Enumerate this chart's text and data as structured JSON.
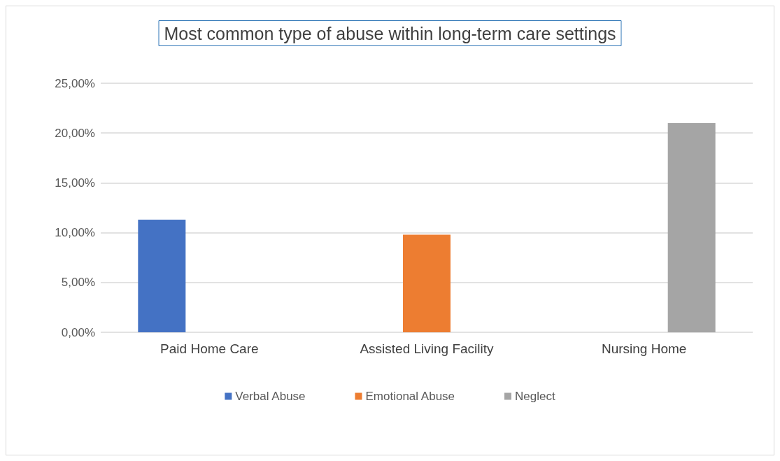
{
  "chart_data": {
    "type": "bar",
    "title": "Most common type of abuse within long-term care settings",
    "categories": [
      "Paid Home Care",
      "Assisted Living Facility",
      "Nursing Home"
    ],
    "series": [
      {
        "name": "Verbal Abuse",
        "color": "#4472c4",
        "values": [
          11.3,
          null,
          null
        ]
      },
      {
        "name": "Emotional Abuse",
        "color": "#ed7d31",
        "values": [
          null,
          9.8,
          null
        ]
      },
      {
        "name": "Neglect",
        "color": "#a5a5a5",
        "values": [
          null,
          null,
          21.0
        ]
      }
    ],
    "ylim": [
      0,
      25
    ],
    "yticks": [
      {
        "value": 0,
        "label": "0,00%"
      },
      {
        "value": 5,
        "label": "5,00%"
      },
      {
        "value": 10,
        "label": "10,00%"
      },
      {
        "value": 15,
        "label": "15,00%"
      },
      {
        "value": 20,
        "label": "20,00%"
      },
      {
        "value": 25,
        "label": "25,00%"
      }
    ],
    "grid": "y",
    "legend": "bottom"
  }
}
